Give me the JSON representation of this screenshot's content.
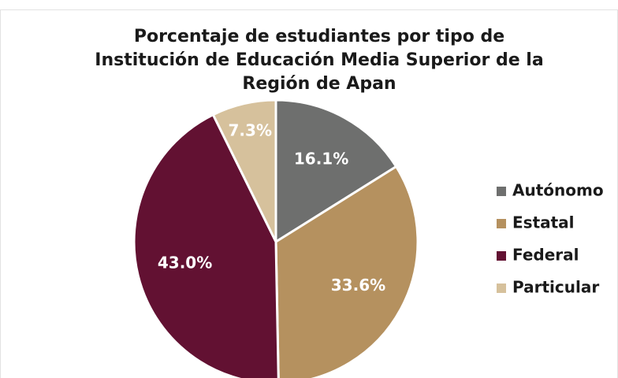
{
  "chart_data": {
    "type": "pie",
    "title": [
      "Porcentaje de estudiantes por tipo de",
      "Institución de Educación Media Superior de la",
      "Región de Apan"
    ],
    "categories": [
      "Autónomo",
      "Estatal",
      "Federal",
      "Particular"
    ],
    "values": [
      16.1,
      33.6,
      43.0,
      7.3
    ],
    "value_labels": [
      "16.1%",
      "33.6%",
      "43.0%",
      "7.3%"
    ],
    "colors": [
      "#6e6f6e",
      "#b5915f",
      "#621132",
      "#d6c19c"
    ],
    "legend": "right"
  }
}
